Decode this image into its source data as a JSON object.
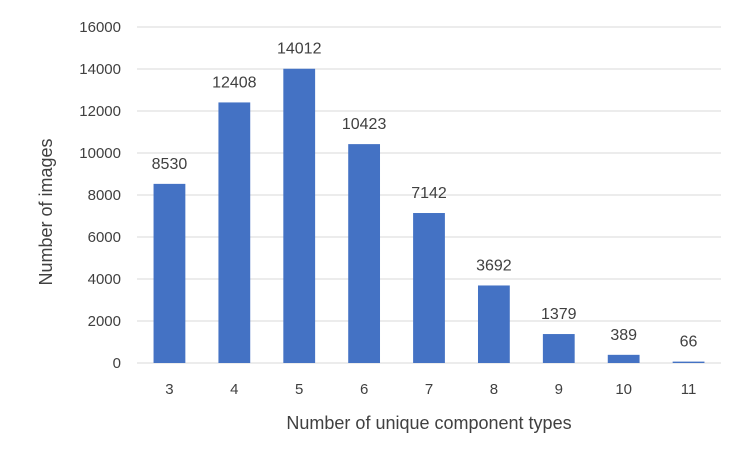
{
  "chart_data": {
    "type": "bar",
    "title": "",
    "xlabel": "Number of unique component types",
    "ylabel": "Number of images",
    "categories": [
      "3",
      "4",
      "5",
      "6",
      "7",
      "8",
      "9",
      "10",
      "11"
    ],
    "values": [
      8530,
      12408,
      14012,
      10423,
      7142,
      3692,
      1379,
      389,
      66
    ],
    "data_labels": [
      "8530",
      "12408",
      "14012",
      "10423",
      "7142",
      "3692",
      "1379",
      "389",
      "66"
    ],
    "ylim": [
      0,
      16000
    ],
    "yticks": [
      0,
      2000,
      4000,
      6000,
      8000,
      10000,
      12000,
      14000,
      16000
    ],
    "ytick_labels": [
      "0",
      "2000",
      "4000",
      "6000",
      "8000",
      "10000",
      "12000",
      "14000",
      "16000"
    ],
    "grid": true,
    "legend": "none",
    "bar_color": "#4472c4"
  }
}
